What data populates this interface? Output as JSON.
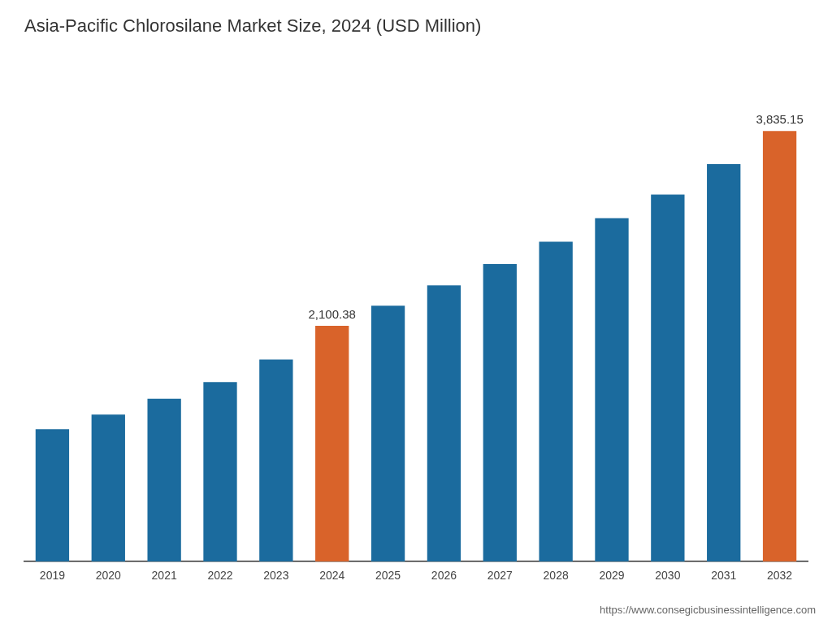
{
  "chart_data": {
    "type": "bar",
    "title": "Asia-Pacific Chlorosilane Market Size, 2024 (USD Million)",
    "categories": [
      "2019",
      "2020",
      "2021",
      "2022",
      "2023",
      "2024",
      "2025",
      "2026",
      "2027",
      "2028",
      "2029",
      "2030",
      "2031",
      "2032"
    ],
    "values": [
      1180,
      1310,
      1450,
      1600,
      1800,
      2100.38,
      2280,
      2460,
      2650,
      2850,
      3060,
      3270,
      3540,
      3835.15
    ],
    "colors": [
      "#1b6b9e",
      "#1b6b9e",
      "#1b6b9e",
      "#1b6b9e",
      "#1b6b9e",
      "#d9632a",
      "#1b6b9e",
      "#1b6b9e",
      "#1b6b9e",
      "#1b6b9e",
      "#1b6b9e",
      "#1b6b9e",
      "#1b6b9e",
      "#d9632a"
    ],
    "data_labels": true,
    "value_labels": [
      null,
      null,
      null,
      null,
      null,
      "2,100.38",
      null,
      null,
      null,
      null,
      null,
      null,
      null,
      "3,835.15"
    ],
    "annotations": [
      "https://www.consegicbusinessintelligence.com"
    ],
    "ylim": [
      0,
      4450
    ],
    "tick_labels": "x",
    "grid": false
  }
}
